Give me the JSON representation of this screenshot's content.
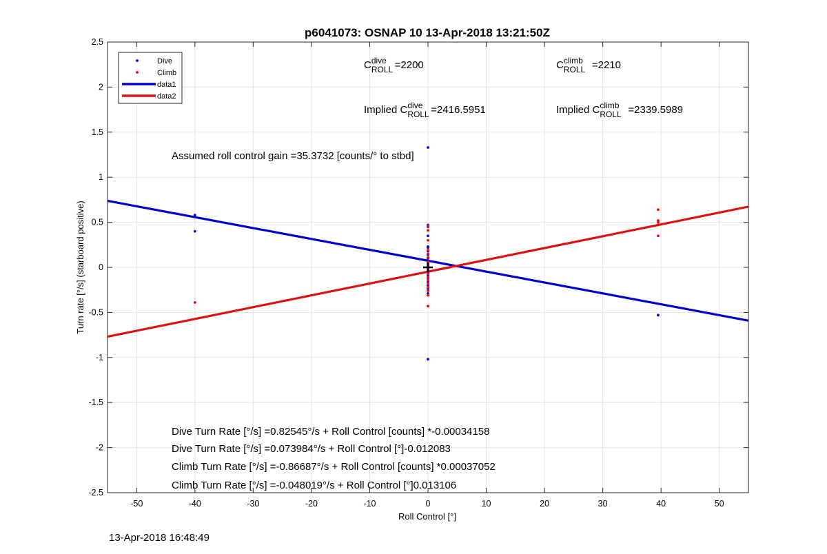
{
  "footer": {
    "timestamp": "13-Apr-2018 16:48:49"
  },
  "chart_data": {
    "type": "scatter",
    "title": "p6041073: OSNAP 10 13-Apr-2018 13:21:50Z",
    "xlabel": "Roll Control [°]",
    "ylabel": "Turn rate [°/s] (starboard positive)",
    "xlim": [
      -55,
      55
    ],
    "ylim": [
      -2.5,
      2.5
    ],
    "xticks": [
      -50,
      -40,
      -30,
      -20,
      -10,
      0,
      10,
      20,
      30,
      40,
      50
    ],
    "yticks": [
      -2.5,
      -2,
      -1.5,
      -1,
      -0.5,
      0,
      0.5,
      1,
      1.5,
      2,
      2.5
    ],
    "grid": true,
    "legend": {
      "placement": "top-left",
      "entries": [
        {
          "label": "Dive",
          "style": "dot",
          "color": "#0000ff"
        },
        {
          "label": "Climb",
          "style": "dot",
          "color": "#ff0000"
        },
        {
          "label": "data1",
          "style": "line",
          "color": "#0000cc"
        },
        {
          "label": "data2",
          "style": "line",
          "color": "#dd1111"
        }
      ]
    },
    "series": [
      {
        "name": "Dive",
        "style": "dot",
        "color": "#0000ff",
        "points": [
          [
            -40,
            0.58
          ],
          [
            -40,
            0.4
          ],
          [
            0,
            1.33
          ],
          [
            0,
            -1.02
          ],
          [
            0,
            0.47
          ],
          [
            0,
            0.45
          ],
          [
            0,
            0.35
          ],
          [
            0,
            0.23
          ],
          [
            0,
            0.22
          ],
          [
            0,
            0.18
          ],
          [
            0,
            0.14
          ],
          [
            0,
            0.1
          ],
          [
            0,
            0.07
          ],
          [
            0,
            0.04
          ],
          [
            0,
            0.01
          ],
          [
            0,
            -0.02
          ],
          [
            0,
            -0.05
          ],
          [
            0,
            -0.09
          ],
          [
            0,
            -0.12
          ],
          [
            0,
            -0.16
          ],
          [
            0,
            -0.2
          ],
          [
            0,
            -0.24
          ],
          [
            0,
            -0.29
          ],
          [
            39.5,
            -0.53
          ]
        ]
      },
      {
        "name": "Climb",
        "style": "dot",
        "color": "#ff0000",
        "points": [
          [
            -40,
            -0.39
          ],
          [
            0,
            0.46
          ],
          [
            0,
            0.41
          ],
          [
            0,
            0.3
          ],
          [
            0,
            0.19
          ],
          [
            0,
            0.15
          ],
          [
            0,
            0.11
          ],
          [
            0,
            0.06
          ],
          [
            0,
            0.03
          ],
          [
            0,
            -0.03
          ],
          [
            0,
            -0.07
          ],
          [
            0,
            -0.11
          ],
          [
            0,
            -0.14
          ],
          [
            0,
            -0.18
          ],
          [
            0,
            -0.22
          ],
          [
            0,
            -0.26
          ],
          [
            0,
            -0.31
          ],
          [
            0,
            -0.43
          ],
          [
            39.5,
            0.64
          ],
          [
            39.5,
            0.52
          ],
          [
            39.5,
            0.5
          ],
          [
            39.5,
            0.47
          ],
          [
            39.5,
            0.35
          ]
        ]
      },
      {
        "name": "data1",
        "style": "line",
        "color": "#0000cc",
        "x": [
          -55,
          55
        ],
        "y": [
          0.738,
          -0.591
        ]
      },
      {
        "name": "data2",
        "style": "line",
        "color": "#dd1111",
        "x": [
          -55,
          55
        ],
        "y": [
          -0.769,
          0.673
        ]
      }
    ],
    "marker": {
      "x": 0,
      "y": 0,
      "style": "plus",
      "color": "#000000"
    },
    "annotations": {
      "c_dive": {
        "base": "C",
        "sup": "dive",
        "sub": "ROLL",
        "value": "=2200"
      },
      "c_climb": {
        "base": "C",
        "sup": "climb",
        "sub": "ROLL",
        "value": "=2210"
      },
      "implied_dive": {
        "prefix": "Implied ",
        "base": "C",
        "sup": "dive",
        "sub": "ROLL",
        "value": "=2416.5951"
      },
      "implied_climb": {
        "prefix": "Implied ",
        "base": "C",
        "sup": "climb",
        "sub": "ROLL",
        "value": "=2339.5989"
      },
      "gain": "Assumed roll control gain =35.3732 [counts/° to stbd]",
      "eq1": "Dive Turn Rate [°/s] =0.82545°/s + Roll Control [counts] *-0.00034158",
      "eq2": "Dive Turn Rate [°/s] =0.073984°/s + Roll Control [°]-0.012083",
      "eq3": "Climb Turn Rate [°/s] =-0.86687°/s + Roll Control [counts] *0.00037052",
      "eq4": "Climb Turn Rate [°/s] =-0.048019°/s + Roll Control [°]0.013106"
    }
  }
}
